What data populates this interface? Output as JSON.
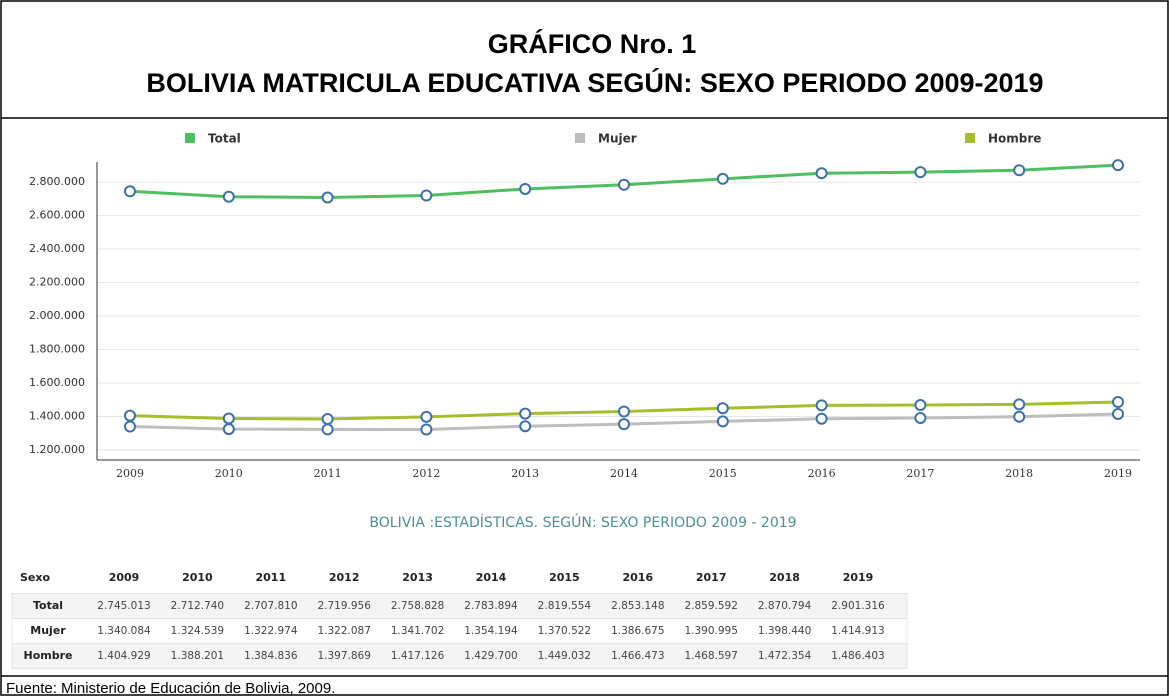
{
  "chart_data": {
    "type": "line",
    "title": "GRÁFICO Nro. 1",
    "subtitle": "BOLIVIA MATRICULA EDUCATIVA SEGÚN: SEXO PERIODO 2009-2019",
    "caption": "BOLIVIA :ESTADÍSTICAS. SEGÚN: SEXO PERIODO 2009 - 2019",
    "categories": [
      "2009",
      "2010",
      "2011",
      "2012",
      "2013",
      "2014",
      "2015",
      "2016",
      "2017",
      "2018",
      "2019"
    ],
    "series": [
      {
        "name": "Total",
        "color": "#4cbf5f",
        "values": [
          2745013,
          2712740,
          2707810,
          2719956,
          2758828,
          2783894,
          2819554,
          2853148,
          2859592,
          2870794,
          2901316
        ],
        "value_labels": [
          "2.745.013",
          "2.712.740",
          "2.707.810",
          "2.719.956",
          "2.758.828",
          "2.783.894",
          "2.819.554",
          "2.853.148",
          "2.859.592",
          "2.870.794",
          "2.901.316"
        ]
      },
      {
        "name": "Mujer",
        "color": "#bdbdbd",
        "values": [
          1340084,
          1324539,
          1322974,
          1322087,
          1341702,
          1354194,
          1370522,
          1386675,
          1390995,
          1398440,
          1414913
        ],
        "value_labels": [
          "1.340.084",
          "1.324.539",
          "1.322.974",
          "1.322.087",
          "1.341.702",
          "1.354.194",
          "1.370.522",
          "1.386.675",
          "1.390.995",
          "1.398.440",
          "1.414.913"
        ]
      },
      {
        "name": "Hombre",
        "color": "#a3bf2a",
        "values": [
          1404929,
          1388201,
          1384836,
          1397869,
          1417126,
          1429700,
          1449032,
          1466473,
          1468597,
          1472354,
          1486403
        ],
        "value_labels": [
          "1.404.929",
          "1.388.201",
          "1.384.836",
          "1.397.869",
          "1.417.126",
          "1.429.700",
          "1.449.032",
          "1.466.473",
          "1.468.597",
          "1.472.354",
          "1.486.403"
        ]
      }
    ],
    "ylim": [
      1140000,
      2920000
    ],
    "yticks": [
      {
        "value": 1200000,
        "label": "1.200.000"
      },
      {
        "value": 1400000,
        "label": "1.400.000"
      },
      {
        "value": 1600000,
        "label": "1.600.000"
      },
      {
        "value": 1800000,
        "label": "1.800.000"
      },
      {
        "value": 2000000,
        "label": "2.000.000"
      },
      {
        "value": 2200000,
        "label": "2.200.000"
      },
      {
        "value": 2400000,
        "label": "2.400.000"
      },
      {
        "value": 2600000,
        "label": "2.600.000"
      },
      {
        "value": 2800000,
        "label": "2.800.000"
      }
    ],
    "grid": true,
    "marker_color": "#3d6fa8",
    "table_header": "Sexo",
    "source": "Fuente: Ministerio de Educación de Bolivia, 2009."
  }
}
